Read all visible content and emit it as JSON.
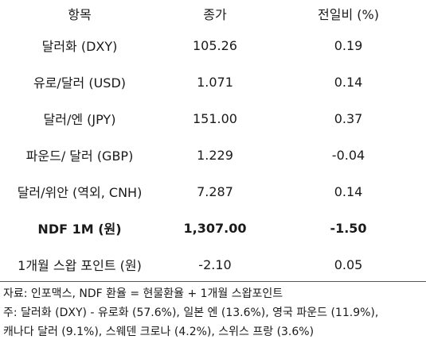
{
  "table": {
    "headers": [
      "항목",
      "종가",
      "전일비 (%)"
    ],
    "rows": [
      {
        "item": "달러화 (DXY)",
        "close": "105.26",
        "change": "0.19"
      },
      {
        "item": "유로/달러 (USD)",
        "close": "1.071",
        "change": "0.14"
      },
      {
        "item": "달러/엔 (JPY)",
        "close": "151.00",
        "change": "0.37"
      },
      {
        "item": "파운드/ 달러 (GBP)",
        "close": "1.229",
        "change": "-0.04"
      },
      {
        "item": "달러/위안 (역외, CNH)",
        "close": "7.287",
        "change": "0.14"
      },
      {
        "item": "NDF 1M (원)",
        "close": "1,307.00",
        "change": "-1.50"
      },
      {
        "item": "1개월 스왑 포인트 (원)",
        "close": "-2.10",
        "change": "0.05"
      }
    ]
  },
  "notes": {
    "source": "자료: 인포맥스, NDF 환율 = 현물환율 + 1개월 스왑포인트",
    "footnote_line1": "주: 달러화 (DXY) - 유로화 (57.6%), 일본 엔 (13.6%), 영국 파운드 (11.9%),",
    "footnote_line2": "캐나다 달러 (9.1%), 스웨덴 크로나 (4.2%), 스위스 프랑 (3.6%)"
  }
}
